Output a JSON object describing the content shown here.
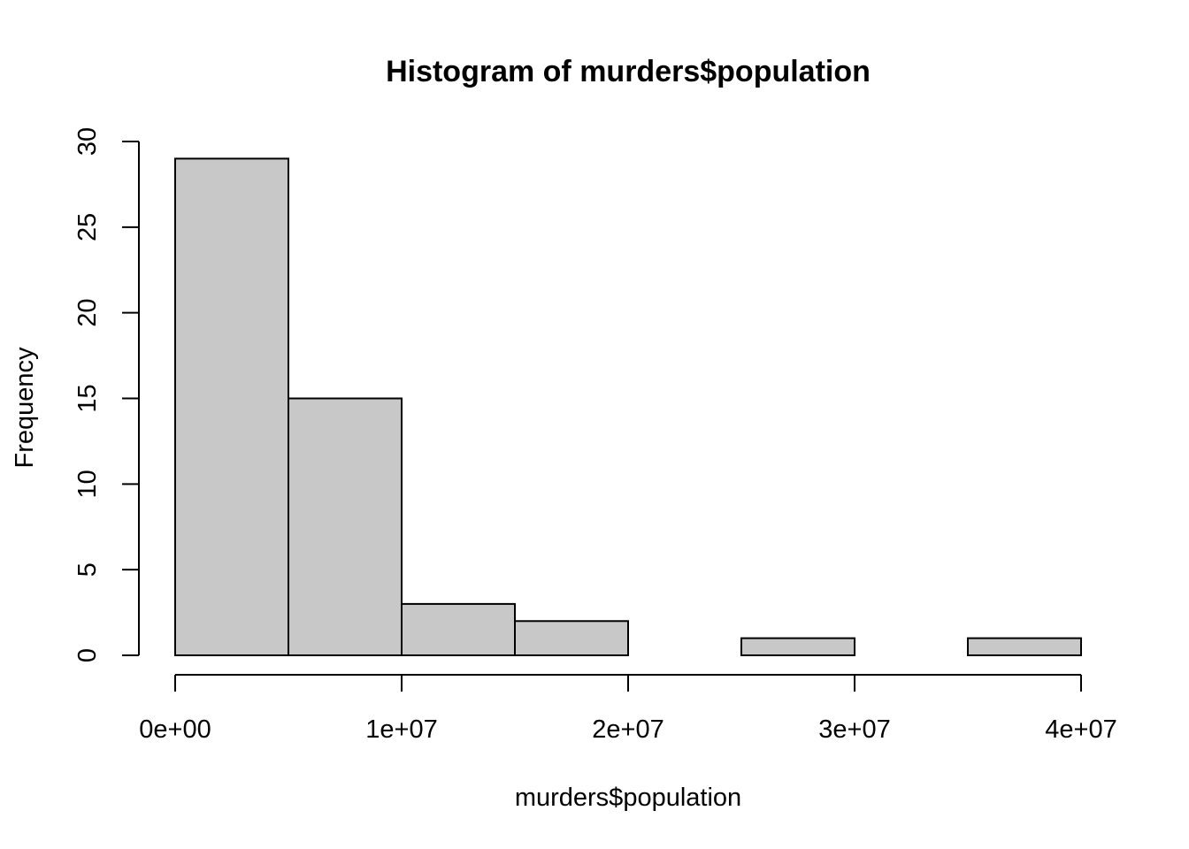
{
  "chart_data": {
    "type": "bar",
    "title": "Histogram of murders$population",
    "xlabel": "murders$population",
    "ylabel": "Frequency",
    "bins": [
      {
        "start": 0,
        "end": 5000000,
        "count": 29
      },
      {
        "start": 5000000,
        "end": 10000000,
        "count": 15
      },
      {
        "start": 10000000,
        "end": 15000000,
        "count": 3
      },
      {
        "start": 15000000,
        "end": 20000000,
        "count": 2
      },
      {
        "start": 20000000,
        "end": 25000000,
        "count": 0
      },
      {
        "start": 25000000,
        "end": 30000000,
        "count": 1
      },
      {
        "start": 30000000,
        "end": 35000000,
        "count": 0
      },
      {
        "start": 35000000,
        "end": 40000000,
        "count": 1
      }
    ],
    "xlim": [
      0,
      40000000
    ],
    "ylim": [
      0,
      30
    ],
    "x_ticks": [
      {
        "value": 0,
        "label": "0e+00"
      },
      {
        "value": 10000000,
        "label": "1e+07"
      },
      {
        "value": 20000000,
        "label": "2e+07"
      },
      {
        "value": 30000000,
        "label": "3e+07"
      },
      {
        "value": 40000000,
        "label": "4e+07"
      }
    ],
    "y_ticks": [
      {
        "value": 0,
        "label": "0"
      },
      {
        "value": 5,
        "label": "5"
      },
      {
        "value": 10,
        "label": "10"
      },
      {
        "value": 15,
        "label": "15"
      },
      {
        "value": 20,
        "label": "20"
      },
      {
        "value": 25,
        "label": "25"
      },
      {
        "value": 30,
        "label": "30"
      }
    ],
    "colors": {
      "bar_fill": "#c8c8c8",
      "bar_stroke": "#000000"
    },
    "grid": false,
    "legend": "none"
  }
}
